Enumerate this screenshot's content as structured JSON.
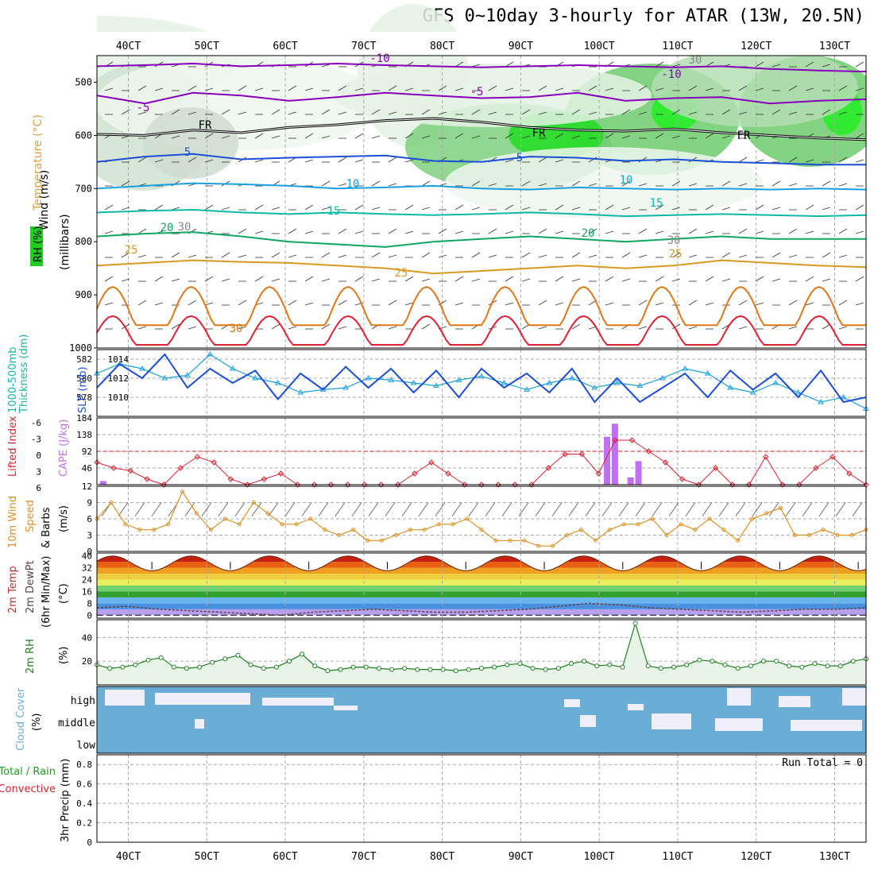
{
  "title": "GFS 0~10day 3-hourly for ATAR (13W, 20.5N)",
  "time_axis": {
    "ticks": [
      "40CT",
      "50CT",
      "60CT",
      "70CT",
      "80CT",
      "90CT",
      "100CT",
      "110CT",
      "120CT",
      "130CT"
    ],
    "tick_hours": [
      4,
      14,
      24,
      34,
      44,
      54,
      64,
      74,
      84,
      94
    ],
    "start_hour": 0,
    "end_hour": 98
  },
  "colors": {
    "purple": "#8800bb",
    "blue": "#1a4fd6",
    "lightblue": "#1aa0e0",
    "teal": "#10b8a8",
    "green": "#10a860",
    "gold": "#d89a20",
    "orange": "#e07818",
    "red": "#e02030",
    "magenta": "#cc1199",
    "cloud": "#6aaed6",
    "cape": "#c070f0"
  },
  "chart_data": [
    {
      "id": "upper",
      "type": "line",
      "ylabels": [
        "Wind (m/s)",
        "Temperature (°C)",
        "RH (%)",
        "(millibars)"
      ],
      "yticks": [
        500,
        600,
        700,
        800,
        900,
        1000
      ],
      "ylim": [
        450,
        1000
      ],
      "contour_labels": [
        "-10",
        "-10",
        "-5",
        "-5",
        "FR",
        "FR",
        "FR",
        "5",
        "5",
        "10",
        "10",
        "15",
        "15",
        "20",
        "20",
        "25",
        "25",
        "25",
        "30",
        "30",
        "30",
        "30"
      ],
      "isotherms": [
        {
          "label": "-10",
          "p": [
            470,
            468,
            465,
            470,
            468,
            465,
            468,
            470,
            472,
            470,
            468,
            470,
            472,
            470,
            475,
            478,
            480
          ]
        },
        {
          "label": "-5",
          "p": [
            525,
            540,
            520,
            525,
            535,
            528,
            520,
            525,
            530,
            528,
            520,
            535,
            530,
            528,
            540,
            535,
            532
          ]
        },
        {
          "label": "FR",
          "p": [
            598,
            600,
            590,
            595,
            585,
            580,
            572,
            568,
            575,
            585,
            590,
            592,
            588,
            595,
            600,
            605,
            608
          ]
        },
        {
          "label": "5",
          "p": [
            650,
            640,
            635,
            645,
            642,
            640,
            638,
            648,
            650,
            640,
            642,
            648,
            645,
            650,
            652,
            655,
            655
          ]
        },
        {
          "label": "10",
          "p": [
            700,
            695,
            690,
            692,
            695,
            700,
            698,
            695,
            700,
            702,
            698,
            700,
            702,
            700,
            702,
            700,
            702
          ]
        },
        {
          "label": "15",
          "p": [
            745,
            742,
            740,
            745,
            748,
            745,
            748,
            750,
            748,
            745,
            748,
            752,
            750,
            748,
            750,
            752,
            750
          ]
        },
        {
          "label": "20",
          "p": [
            790,
            785,
            782,
            790,
            800,
            805,
            810,
            800,
            795,
            790,
            795,
            800,
            795,
            790,
            795,
            795,
            795
          ]
        },
        {
          "label": "25",
          "p": [
            845,
            840,
            835,
            838,
            840,
            845,
            850,
            860,
            855,
            850,
            845,
            850,
            845,
            835,
            840,
            845,
            848
          ]
        }
      ]
    },
    {
      "id": "slp",
      "type": "line",
      "ylabels": [
        "1000-500mb",
        "Thickness (dm)",
        "SLP (mb)"
      ],
      "left_ticks": [
        "582",
        "580",
        "578"
      ],
      "right_ticks": [
        "1014",
        "1012",
        "1010"
      ],
      "ylim": [
        1008,
        1015
      ],
      "slp": [
        1011,
        1013.5,
        1012,
        1014.5,
        1011,
        1013,
        1011.5,
        1012.8,
        1009.8,
        1012.5,
        1010.8,
        1013.2,
        1011,
        1013,
        1010.5,
        1012.8,
        1010,
        1013,
        1011,
        1012.5,
        1010.5,
        1013,
        1009.5,
        1012,
        1009.5,
        1011,
        1012.5,
        1010,
        1012.8,
        1010.8,
        1012.5,
        1010,
        1012.8,
        1009.5,
        1010
      ],
      "thickness": [
        1012.5,
        1013.5,
        1013,
        1012,
        1012.3,
        1014.5,
        1013,
        1012,
        1011.5,
        1010.5,
        1010.8,
        1011,
        1012,
        1011.8,
        1011.5,
        1011.2,
        1011.8,
        1012.2,
        1011.5,
        1010.8,
        1011.5,
        1012,
        1011,
        1011.5,
        1011.2,
        1012,
        1013,
        1012.5,
        1011,
        1010.5,
        1011.5,
        1010.5,
        1009.5,
        1010,
        1008.8
      ]
    },
    {
      "id": "cape",
      "type": "bar",
      "ylabels": [
        "Lifted Index",
        "CAPE (J/kg)"
      ],
      "left_ticks": [
        "-6",
        "-3",
        "0",
        "3",
        "6"
      ],
      "right_ticks": [
        "184",
        "138",
        "92",
        "46"
      ],
      "ylim": [
        0,
        184
      ],
      "lifted_index": [
        2,
        3,
        3.5,
        5,
        6,
        3,
        1,
        2,
        5,
        6,
        5,
        4,
        6,
        6,
        6,
        6,
        6,
        6,
        6,
        4,
        2,
        4,
        6,
        6,
        6,
        6,
        6,
        3,
        0.5,
        0.5,
        4,
        -2,
        -2,
        0,
        2,
        5,
        6,
        3,
        6,
        6,
        1,
        6,
        6,
        3,
        1,
        4,
        6
      ],
      "bars": [
        {
          "hour": 0.8,
          "value": 10
        },
        {
          "hour": 65,
          "value": 132
        },
        {
          "hour": 66,
          "value": 168
        },
        {
          "hour": 68,
          "value": 20
        },
        {
          "hour": 69,
          "value": 65
        }
      ]
    },
    {
      "id": "wind10",
      "type": "line",
      "ylabels": [
        "10m Wind",
        "Speed",
        "& Barbs",
        "(m/s)"
      ],
      "yticks": [
        "12",
        "9",
        "6",
        "3",
        "0"
      ],
      "ylim": [
        0,
        12
      ],
      "speed": [
        6,
        9,
        5,
        4,
        4,
        5,
        11,
        7,
        4,
        6,
        5,
        9,
        7,
        5,
        5,
        6,
        4,
        3,
        4,
        2,
        2,
        3,
        4,
        4,
        5,
        5,
        6,
        4,
        2,
        2,
        2,
        1,
        1,
        3,
        4,
        2,
        4,
        5,
        5,
        6,
        3,
        5,
        4,
        6,
        4,
        2,
        6,
        7,
        8,
        3,
        3,
        4,
        3,
        3,
        4
      ]
    },
    {
      "id": "temp2m",
      "type": "area",
      "ylabels": [
        "2m Temp",
        "2m DewPt",
        "(6hr Min/Max)",
        "(°C)"
      ],
      "yticks": [
        "40",
        "32",
        "24",
        "16",
        "8",
        "0"
      ],
      "ylim": [
        -2,
        42
      ],
      "temp_peaks_hour": [
        2,
        12,
        22,
        32,
        42,
        52,
        62,
        72,
        82,
        92
      ],
      "temp_max": 40,
      "temp_min": 30,
      "dewpt": [
        5,
        6,
        4,
        3,
        2,
        1,
        0,
        2,
        3,
        4,
        3,
        2,
        2,
        3,
        4,
        6,
        8,
        7,
        5,
        4,
        3,
        2,
        3,
        4,
        4,
        5
      ]
    },
    {
      "id": "rh2m",
      "type": "area",
      "ylabels": [
        "2m RH",
        "(%)"
      ],
      "yticks": [
        "40",
        "20"
      ],
      "ylim": [
        0,
        55
      ],
      "values": [
        17,
        14,
        15,
        17,
        21,
        23,
        15,
        14,
        15,
        19,
        22,
        25,
        17,
        14,
        15,
        20,
        26,
        16,
        12,
        13,
        15,
        15,
        14,
        13,
        14,
        13,
        13,
        13,
        12,
        13,
        14,
        15,
        17,
        18,
        14,
        13,
        14,
        18,
        20,
        16,
        17,
        15,
        52,
        16,
        14,
        15,
        17,
        21,
        20,
        17,
        14,
        16,
        20,
        20,
        16,
        15,
        18,
        16,
        16,
        20,
        22
      ]
    },
    {
      "id": "cloud",
      "type": "heatmap",
      "ylabels": [
        "Cloud Cover",
        "(%)"
      ],
      "levels": [
        "high",
        "middle",
        "low"
      ]
    },
    {
      "id": "precip",
      "type": "bar",
      "ylabels": [
        "Total / Rain",
        "Convective",
        "3hr Precip (mm)"
      ],
      "yticks": [
        "0.8",
        "0.6",
        "0.4",
        "0.2",
        "0"
      ],
      "ylim": [
        0,
        0.9
      ],
      "run_total_label": "Run Total = 0",
      "values": []
    }
  ]
}
